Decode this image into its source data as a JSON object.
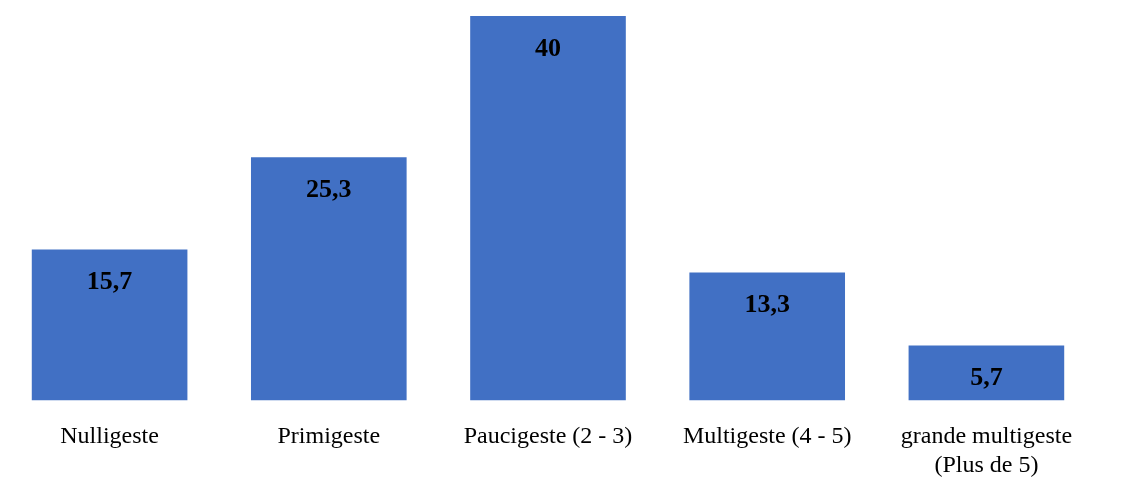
{
  "chart_data": {
    "type": "bar",
    "categories": [
      "Nulligeste",
      "Primigeste",
      "Paucigeste (2 - 3)",
      "Multigeste (4 - 5)",
      "grande multigeste\n(Plus de 5)"
    ],
    "values": [
      15.7,
      25.3,
      40,
      13.3,
      5.7
    ],
    "value_labels": [
      "15,7",
      "25,3",
      "40",
      "13,3",
      "5,7"
    ],
    "color": "#4170c4"
  }
}
